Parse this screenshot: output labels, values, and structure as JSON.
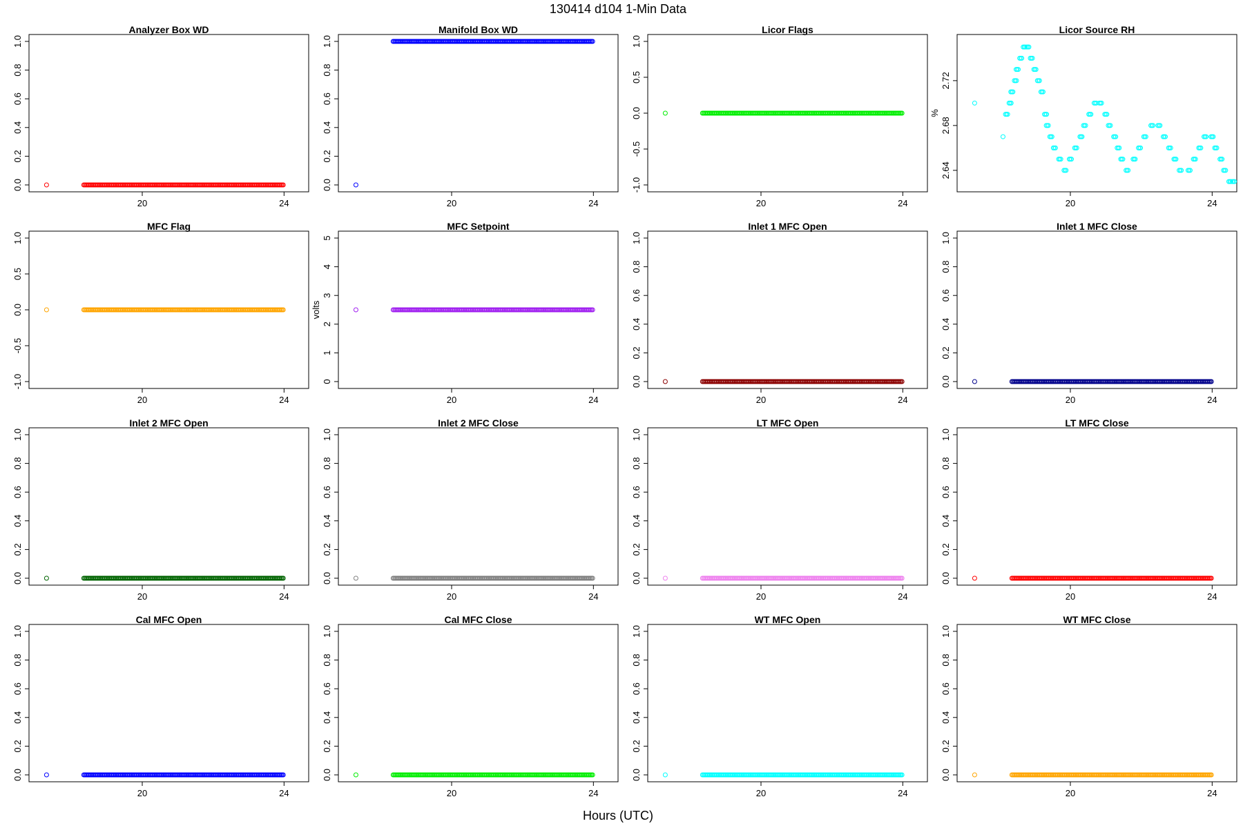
{
  "figure": {
    "title": "130414   d104   1-Min Data",
    "xlabel": "Hours (UTC)"
  },
  "chart_data": [
    {
      "type": "scatter",
      "title": "Analyzer Box WD",
      "ylabel": "",
      "color": "#ff0000",
      "xlim": [
        17,
        24.5
      ],
      "ylim": [
        0,
        1
      ],
      "yticks": [
        0.0,
        0.2,
        0.4,
        0.6,
        0.8,
        1.0
      ],
      "yticklabels": [
        "0.0",
        "0.2",
        "0.4",
        "0.6",
        "0.8",
        "1.0"
      ],
      "xticks": [
        20,
        24
      ],
      "xticklabels": [
        "20",
        "24"
      ],
      "isolated": [
        {
          "x": 17.3,
          "y": 0
        }
      ],
      "run": {
        "from": 18.35,
        "to": 24,
        "y": 0
      }
    },
    {
      "type": "scatter",
      "title": "Manifold Box WD",
      "ylabel": "",
      "color": "#0000ff",
      "xlim": [
        17,
        24.5
      ],
      "ylim": [
        0,
        1
      ],
      "yticks": [
        0.0,
        0.2,
        0.4,
        0.6,
        0.8,
        1.0
      ],
      "yticklabels": [
        "0.0",
        "0.2",
        "0.4",
        "0.6",
        "0.8",
        "1.0"
      ],
      "xticks": [
        20,
        24
      ],
      "xticklabels": [
        "20",
        "24"
      ],
      "isolated": [
        {
          "x": 17.3,
          "y": 0
        }
      ],
      "run": {
        "from": 18.35,
        "to": 24,
        "y": 1
      }
    },
    {
      "type": "scatter",
      "title": "Licor Flags",
      "ylabel": "",
      "color": "#00ee00",
      "xlim": [
        17,
        24.5
      ],
      "ylim": [
        -1,
        1
      ],
      "yticks": [
        -1.0,
        -0.5,
        0.0,
        0.5,
        1.0
      ],
      "yticklabels": [
        "-1.0",
        "-0.5",
        "0.0",
        "0.5",
        "1.0"
      ],
      "xticks": [
        20,
        24
      ],
      "xticklabels": [
        "20",
        "24"
      ],
      "isolated": [
        {
          "x": 17.3,
          "y": 0
        }
      ],
      "run": {
        "from": 18.35,
        "to": 24,
        "y": 0
      }
    },
    {
      "type": "scatter",
      "title": "Licor Source RH",
      "ylabel": "%",
      "color": "#00ffff",
      "xlim": [
        17,
        24.5
      ],
      "ylim": [
        2.627,
        2.755
      ],
      "yticks": [
        2.64,
        2.68,
        2.72
      ],
      "yticklabels": [
        "2.64",
        "2.68",
        "2.72"
      ],
      "xticks": [
        20,
        24
      ],
      "xticklabels": [
        "20",
        "24"
      ],
      "isolated": [
        {
          "x": 17.3,
          "y": 2.7
        },
        {
          "x": 18.1,
          "y": 2.67
        }
      ],
      "series_points": [
        [
          18.2,
          2.69
        ],
        [
          18.3,
          2.7
        ],
        [
          18.35,
          2.71
        ],
        [
          18.45,
          2.72
        ],
        [
          18.5,
          2.73
        ],
        [
          18.6,
          2.74
        ],
        [
          18.7,
          2.75
        ],
        [
          18.8,
          2.75
        ],
        [
          18.9,
          2.74
        ],
        [
          19.0,
          2.73
        ],
        [
          19.1,
          2.72
        ],
        [
          19.2,
          2.71
        ],
        [
          19.3,
          2.69
        ],
        [
          19.35,
          2.68
        ],
        [
          19.45,
          2.67
        ],
        [
          19.55,
          2.66
        ],
        [
          19.7,
          2.65
        ],
        [
          19.85,
          2.64
        ],
        [
          20.0,
          2.65
        ],
        [
          20.15,
          2.66
        ],
        [
          20.3,
          2.67
        ],
        [
          20.4,
          2.68
        ],
        [
          20.55,
          2.69
        ],
        [
          20.7,
          2.7
        ],
        [
          20.85,
          2.7
        ],
        [
          21.0,
          2.69
        ],
        [
          21.1,
          2.68
        ],
        [
          21.25,
          2.67
        ],
        [
          21.35,
          2.66
        ],
        [
          21.45,
          2.65
        ],
        [
          21.6,
          2.64
        ],
        [
          21.8,
          2.65
        ],
        [
          21.95,
          2.66
        ],
        [
          22.1,
          2.67
        ],
        [
          22.3,
          2.68
        ],
        [
          22.5,
          2.68
        ],
        [
          22.65,
          2.67
        ],
        [
          22.8,
          2.66
        ],
        [
          22.95,
          2.65
        ],
        [
          23.1,
          2.64
        ],
        [
          23.35,
          2.64
        ],
        [
          23.5,
          2.65
        ],
        [
          23.65,
          2.66
        ],
        [
          23.8,
          2.67
        ],
        [
          24.0,
          2.67
        ],
        [
          24.1,
          2.66
        ],
        [
          24.25,
          2.65
        ],
        [
          24.35,
          2.64
        ],
        [
          24.5,
          2.63
        ],
        [
          24.6,
          2.63
        ]
      ]
    },
    {
      "type": "scatter",
      "title": "MFC Flag",
      "ylabel": "",
      "color": "#ffa500",
      "xlim": [
        17,
        24.5
      ],
      "ylim": [
        -1,
        1
      ],
      "yticks": [
        -1.0,
        -0.5,
        0.0,
        0.5,
        1.0
      ],
      "yticklabels": [
        "-1.0",
        "-0.5",
        "0.0",
        "0.5",
        "1.0"
      ],
      "xticks": [
        20,
        24
      ],
      "xticklabels": [
        "20",
        "24"
      ],
      "isolated": [
        {
          "x": 17.3,
          "y": 0
        }
      ],
      "run": {
        "from": 18.35,
        "to": 24,
        "y": 0
      }
    },
    {
      "type": "scatter",
      "title": "MFC Setpoint",
      "ylabel": "volts",
      "color": "#a020f0",
      "xlim": [
        17,
        24.5
      ],
      "ylim": [
        0,
        5
      ],
      "yticks": [
        0,
        1,
        2,
        3,
        4,
        5
      ],
      "yticklabels": [
        "0",
        "1",
        "2",
        "3",
        "4",
        "5"
      ],
      "xticks": [
        20,
        24
      ],
      "xticklabels": [
        "20",
        "24"
      ],
      "isolated": [
        {
          "x": 17.3,
          "y": 2.5
        }
      ],
      "run": {
        "from": 18.35,
        "to": 24,
        "y": 2.5
      }
    },
    {
      "type": "scatter",
      "title": "Inlet 1 MFC Open",
      "ylabel": "",
      "color": "#8b0000",
      "xlim": [
        17,
        24.5
      ],
      "ylim": [
        0,
        1
      ],
      "yticks": [
        0.0,
        0.2,
        0.4,
        0.6,
        0.8,
        1.0
      ],
      "yticklabels": [
        "0.0",
        "0.2",
        "0.4",
        "0.6",
        "0.8",
        "1.0"
      ],
      "xticks": [
        20,
        24
      ],
      "xticklabels": [
        "20",
        "24"
      ],
      "isolated": [
        {
          "x": 17.3,
          "y": 0
        }
      ],
      "run": {
        "from": 18.35,
        "to": 24,
        "y": 0
      }
    },
    {
      "type": "scatter",
      "title": "Inlet 1 MFC Close",
      "ylabel": "",
      "color": "#00008b",
      "xlim": [
        17,
        24.5
      ],
      "ylim": [
        0,
        1
      ],
      "yticks": [
        0.0,
        0.2,
        0.4,
        0.6,
        0.8,
        1.0
      ],
      "yticklabels": [
        "0.0",
        "0.2",
        "0.4",
        "0.6",
        "0.8",
        "1.0"
      ],
      "xticks": [
        20,
        24
      ],
      "xticklabels": [
        "20",
        "24"
      ],
      "isolated": [
        {
          "x": 17.3,
          "y": 0
        }
      ],
      "run": {
        "from": 18.35,
        "to": 24,
        "y": 0
      }
    },
    {
      "type": "scatter",
      "title": "Inlet 2 MFC Open",
      "ylabel": "",
      "color": "#006400",
      "xlim": [
        17,
        24.5
      ],
      "ylim": [
        0,
        1
      ],
      "yticks": [
        0.0,
        0.2,
        0.4,
        0.6,
        0.8,
        1.0
      ],
      "yticklabels": [
        "0.0",
        "0.2",
        "0.4",
        "0.6",
        "0.8",
        "1.0"
      ],
      "xticks": [
        20,
        24
      ],
      "xticklabels": [
        "20",
        "24"
      ],
      "isolated": [
        {
          "x": 17.3,
          "y": 0
        }
      ],
      "run": {
        "from": 18.35,
        "to": 24,
        "y": 0
      }
    },
    {
      "type": "scatter",
      "title": "Inlet 2 MFC Close",
      "ylabel": "",
      "color": "#808080",
      "xlim": [
        17,
        24.5
      ],
      "ylim": [
        0,
        1
      ],
      "yticks": [
        0.0,
        0.2,
        0.4,
        0.6,
        0.8,
        1.0
      ],
      "yticklabels": [
        "0.0",
        "0.2",
        "0.4",
        "0.6",
        "0.8",
        "1.0"
      ],
      "xticks": [
        20,
        24
      ],
      "xticklabels": [
        "20",
        "24"
      ],
      "isolated": [
        {
          "x": 17.3,
          "y": 0
        }
      ],
      "run": {
        "from": 18.35,
        "to": 24,
        "y": 0
      }
    },
    {
      "type": "scatter",
      "title": "LT MFC Open",
      "ylabel": "",
      "color": "#ee82ee",
      "xlim": [
        17,
        24.5
      ],
      "ylim": [
        0,
        1
      ],
      "yticks": [
        0.0,
        0.2,
        0.4,
        0.6,
        0.8,
        1.0
      ],
      "yticklabels": [
        "0.0",
        "0.2",
        "0.4",
        "0.6",
        "0.8",
        "1.0"
      ],
      "xticks": [
        20,
        24
      ],
      "xticklabels": [
        "20",
        "24"
      ],
      "isolated": [
        {
          "x": 17.3,
          "y": 0
        }
      ],
      "run": {
        "from": 18.35,
        "to": 24,
        "y": 0
      }
    },
    {
      "type": "scatter",
      "title": "LT MFC Close",
      "ylabel": "",
      "color": "#ff0000",
      "xlim": [
        17,
        24.5
      ],
      "ylim": [
        0,
        1
      ],
      "yticks": [
        0.0,
        0.2,
        0.4,
        0.6,
        0.8,
        1.0
      ],
      "yticklabels": [
        "0.0",
        "0.2",
        "0.4",
        "0.6",
        "0.8",
        "1.0"
      ],
      "xticks": [
        20,
        24
      ],
      "xticklabels": [
        "20",
        "24"
      ],
      "isolated": [
        {
          "x": 17.3,
          "y": 0
        }
      ],
      "run": {
        "from": 18.35,
        "to": 24,
        "y": 0
      }
    },
    {
      "type": "scatter",
      "title": "Cal MFC Open",
      "ylabel": "",
      "color": "#0000ff",
      "xlim": [
        17,
        24.5
      ],
      "ylim": [
        0,
        1
      ],
      "yticks": [
        0.0,
        0.2,
        0.4,
        0.6,
        0.8,
        1.0
      ],
      "yticklabels": [
        "0.0",
        "0.2",
        "0.4",
        "0.6",
        "0.8",
        "1.0"
      ],
      "xticks": [
        20,
        24
      ],
      "xticklabels": [
        "20",
        "24"
      ],
      "isolated": [
        {
          "x": 17.3,
          "y": 0
        }
      ],
      "run": {
        "from": 18.35,
        "to": 24,
        "y": 0
      }
    },
    {
      "type": "scatter",
      "title": "Cal MFC Close",
      "ylabel": "",
      "color": "#00ee00",
      "xlim": [
        17,
        24.5
      ],
      "ylim": [
        0,
        1
      ],
      "yticks": [
        0.0,
        0.2,
        0.4,
        0.6,
        0.8,
        1.0
      ],
      "yticklabels": [
        "0.0",
        "0.2",
        "0.4",
        "0.6",
        "0.8",
        "1.0"
      ],
      "xticks": [
        20,
        24
      ],
      "xticklabels": [
        "20",
        "24"
      ],
      "isolated": [
        {
          "x": 17.3,
          "y": 0
        }
      ],
      "run": {
        "from": 18.35,
        "to": 24,
        "y": 0
      }
    },
    {
      "type": "scatter",
      "title": "WT MFC Open",
      "ylabel": "",
      "color": "#00ffff",
      "xlim": [
        17,
        24.5
      ],
      "ylim": [
        0,
        1
      ],
      "yticks": [
        0.0,
        0.2,
        0.4,
        0.6,
        0.8,
        1.0
      ],
      "yticklabels": [
        "0.0",
        "0.2",
        "0.4",
        "0.6",
        "0.8",
        "1.0"
      ],
      "xticks": [
        20,
        24
      ],
      "xticklabels": [
        "20",
        "24"
      ],
      "isolated": [
        {
          "x": 17.3,
          "y": 0
        }
      ],
      "run": {
        "from": 18.35,
        "to": 24,
        "y": 0
      }
    },
    {
      "type": "scatter",
      "title": "WT MFC Close",
      "ylabel": "",
      "color": "#ffa500",
      "xlim": [
        17,
        24.5
      ],
      "ylim": [
        0,
        1
      ],
      "yticks": [
        0.0,
        0.2,
        0.4,
        0.6,
        0.8,
        1.0
      ],
      "yticklabels": [
        "0.0",
        "0.2",
        "0.4",
        "0.6",
        "0.8",
        "1.0"
      ],
      "xticks": [
        20,
        24
      ],
      "xticklabels": [
        "20",
        "24"
      ],
      "isolated": [
        {
          "x": 17.3,
          "y": 0
        }
      ],
      "run": {
        "from": 18.35,
        "to": 24,
        "y": 0
      }
    }
  ]
}
